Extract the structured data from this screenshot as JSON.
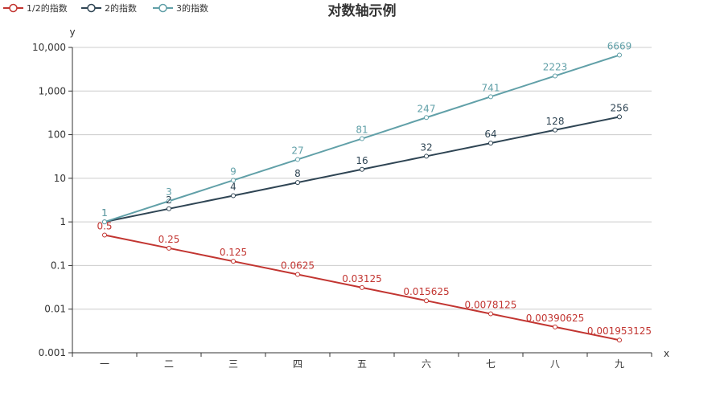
{
  "chart_data": {
    "type": "line",
    "title": "对数轴示例",
    "xlabel": "x",
    "ylabel": "y",
    "y_scale": "log",
    "ylim": [
      0.001,
      10000
    ],
    "y_ticks": [
      {
        "value": 10000,
        "label": "10,000"
      },
      {
        "value": 1000,
        "label": "1,000"
      },
      {
        "value": 100,
        "label": "100"
      },
      {
        "value": 10,
        "label": "10"
      },
      {
        "value": 1,
        "label": "1"
      },
      {
        "value": 0.1,
        "label": "0.1"
      },
      {
        "value": 0.01,
        "label": "0.01"
      },
      {
        "value": 0.001,
        "label": "0.001"
      }
    ],
    "categories": [
      "一",
      "二",
      "三",
      "四",
      "五",
      "六",
      "七",
      "八",
      "九"
    ],
    "grid": true,
    "legend_position": "top-left",
    "series": [
      {
        "name": "1/2的指数",
        "color": "#c23531",
        "values": [
          0.5,
          0.25,
          0.125,
          0.0625,
          0.03125,
          0.015625,
          0.0078125,
          0.00390625,
          0.001953125
        ],
        "labels": [
          "0.5",
          "0.25",
          "0.125",
          "0.0625",
          "0.03125",
          "0.015625",
          "0.0078125",
          "0.00390625",
          "0.001953125"
        ]
      },
      {
        "name": "2的指数",
        "color": "#2f4554",
        "values": [
          1,
          2,
          4,
          8,
          16,
          32,
          64,
          128,
          256
        ],
        "labels": [
          "1",
          "2",
          "4",
          "8",
          "16",
          "32",
          "64",
          "128",
          "256"
        ]
      },
      {
        "name": "3的指数",
        "color": "#61a0a8",
        "values": [
          1,
          3,
          9,
          27,
          81,
          247,
          741,
          2223,
          6669
        ],
        "labels": [
          "1",
          "3",
          "9",
          "27",
          "81",
          "247",
          "741",
          "2223",
          "6669"
        ]
      }
    ]
  }
}
